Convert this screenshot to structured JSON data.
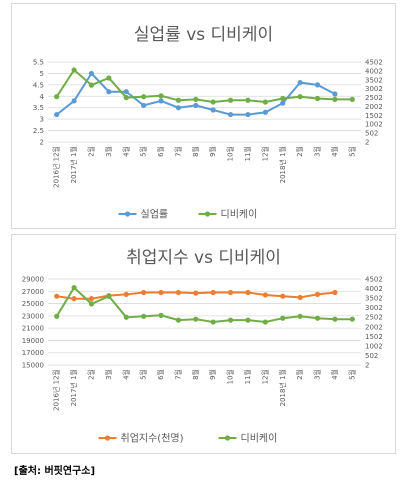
{
  "source": "[출처: 버핏연구소]",
  "colors": {
    "blue": "#5b9bd5",
    "green": "#70ad47",
    "orange": "#ed7d31",
    "grid": "#d9d9d9",
    "text": "#595959"
  },
  "chart_data": [
    {
      "type": "line",
      "title": "실업률 vs 디비케이",
      "categories": [
        "2016년 12월",
        "2017년 1월",
        "2월",
        "3월",
        "4월",
        "5월",
        "6월",
        "7월",
        "8월",
        "9월",
        "10월",
        "11월",
        "12월",
        "2018년 1월",
        "2월",
        "3월",
        "4월",
        "5월"
      ],
      "x_tick_labels": [
        "2016년 12월",
        "2017년 1월",
        "2월",
        "3월",
        "4월",
        "5월",
        "6월",
        "7월",
        "8월",
        "9월",
        "10월",
        "11월",
        "12월",
        "2018년 1월",
        "2월",
        "3월",
        "4월",
        "5월"
      ],
      "series": [
        {
          "name": "실업률",
          "axis": "left",
          "color": "#5b9bd5",
          "values": [
            3.2,
            3.8,
            5.0,
            4.2,
            4.2,
            3.6,
            3.8,
            3.5,
            3.6,
            3.4,
            3.2,
            3.2,
            3.3,
            3.7,
            4.6,
            4.5,
            4.1,
            null
          ]
        },
        {
          "name": "디비케이",
          "axis": "right",
          "color": "#70ad47",
          "values": [
            2550,
            4050,
            3200,
            3600,
            2500,
            2550,
            2600,
            2350,
            2400,
            2250,
            2350,
            2350,
            2250,
            2450,
            2550,
            2450,
            2400,
            2400
          ]
        }
      ],
      "y_left": {
        "min": 2,
        "max": 5.5,
        "ticks": [
          "2",
          "2.5",
          "3",
          "3.5",
          "4",
          "4.5",
          "5",
          "5.5"
        ]
      },
      "y_right": {
        "min": 2,
        "max": 4502,
        "ticks": [
          "2",
          "502",
          "1002",
          "1502",
          "2002",
          "2502",
          "3002",
          "3502",
          "4002",
          "4502"
        ]
      },
      "grid": true,
      "legend": "bottom"
    },
    {
      "type": "line",
      "title": "취업지수 vs 디비케이",
      "categories": [
        "2016년 12월",
        "2017년 1월",
        "2월",
        "3월",
        "4월",
        "5월",
        "6월",
        "7월",
        "8월",
        "9월",
        "10월",
        "11월",
        "12월",
        "2018년 1월",
        "2월",
        "3월",
        "4월",
        "5월"
      ],
      "x_tick_labels": [
        "2016년 12월",
        "2017년 1월",
        "2월",
        "3월",
        "4월",
        "5월",
        "6월",
        "7월",
        "8월",
        "9월",
        "10월",
        "11월",
        "12월",
        "2018년 1월",
        "2월",
        "3월",
        "4월",
        "5월"
      ],
      "series": [
        {
          "name": "취업지수(천명)",
          "axis": "left",
          "color": "#ed7d31",
          "values": [
            26200,
            25800,
            25800,
            26300,
            26500,
            26800,
            26800,
            26800,
            26700,
            26800,
            26800,
            26800,
            26400,
            26200,
            26000,
            26500,
            26800,
            null
          ]
        },
        {
          "name": "디비케이",
          "axis": "right",
          "color": "#70ad47",
          "values": [
            2550,
            4050,
            3200,
            3600,
            2500,
            2550,
            2600,
            2350,
            2400,
            2250,
            2350,
            2350,
            2250,
            2450,
            2550,
            2450,
            2400,
            2400
          ]
        }
      ],
      "y_left": {
        "min": 15000,
        "max": 29000,
        "ticks": [
          "15000",
          "17000",
          "19000",
          "21000",
          "23000",
          "25000",
          "27000",
          "29000"
        ]
      },
      "y_right": {
        "min": 2,
        "max": 4502,
        "ticks": [
          "2",
          "502",
          "1002",
          "1502",
          "2002",
          "2502",
          "3002",
          "3502",
          "4002",
          "4502"
        ]
      },
      "grid": true,
      "legend": "bottom"
    }
  ]
}
